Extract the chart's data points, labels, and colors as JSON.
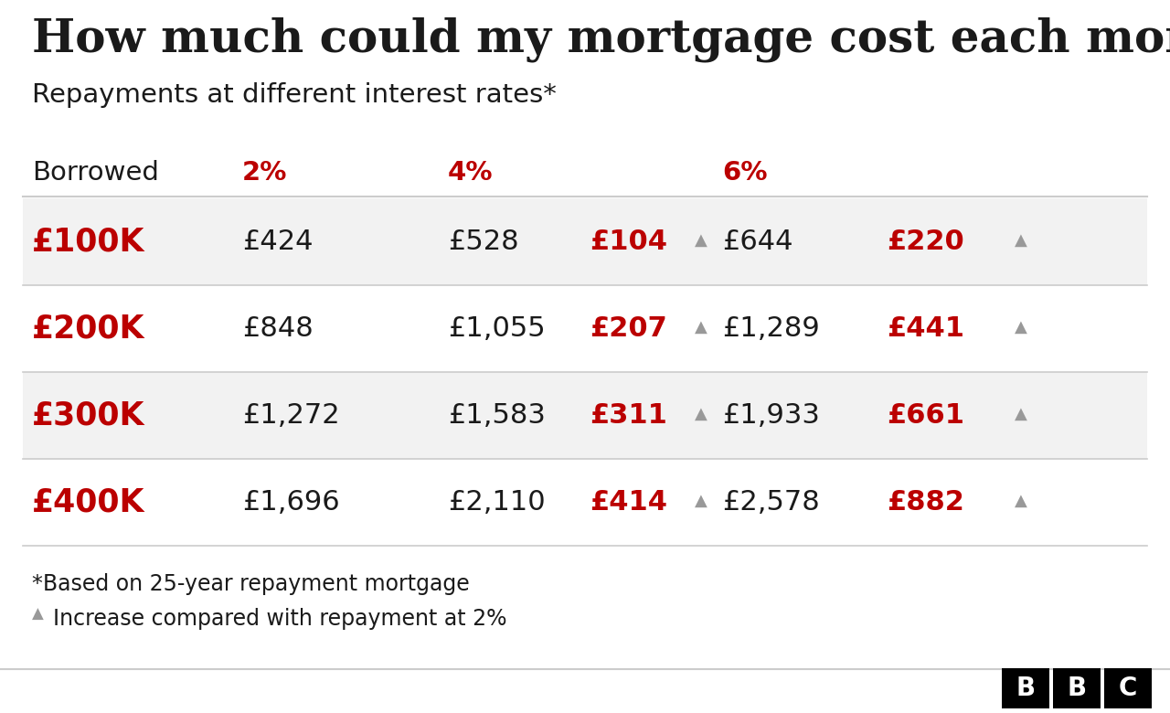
{
  "title": "How much could my mortgage cost each month?",
  "subtitle": "Repayments at different interest rates*",
  "bg_color": "#ffffff",
  "rows": [
    {
      "borrowed": "£100K",
      "val_2pct": "£424",
      "val_4pct": "£528",
      "diff_4pct": "£104",
      "val_6pct": "£644",
      "diff_6pct": "£220",
      "shaded": true
    },
    {
      "borrowed": "£200K",
      "val_2pct": "£848",
      "val_4pct": "£1,055",
      "diff_4pct": "£207",
      "val_6pct": "£1,289",
      "diff_6pct": "£441",
      "shaded": false
    },
    {
      "borrowed": "£300K",
      "val_2pct": "£1,272",
      "val_4pct": "£1,583",
      "diff_4pct": "£311",
      "val_6pct": "£1,933",
      "diff_6pct": "£661",
      "shaded": true
    },
    {
      "borrowed": "£400K",
      "val_2pct": "£1,696",
      "val_4pct": "£2,110",
      "diff_4pct": "£414",
      "val_6pct": "£2,578",
      "diff_6pct": "£882",
      "shaded": false
    }
  ],
  "footnote1": "*Based on 25-year repayment mortgage",
  "footnote2": "Increase compared with repayment at 2%",
  "red_color": "#bb0000",
  "dark_color": "#1a1a1a",
  "gray_color": "#999999",
  "shaded_color": "#f2f2f2",
  "line_color": "#cccccc",
  "bbc_bg": "#000000",
  "bbc_text": "#ffffff",
  "col_borrowed": 0.03,
  "col_2pct": 0.21,
  "col_4pct": 0.4,
  "col_diff4": 0.545,
  "col_6pct": 0.685,
  "col_diff6": 0.845,
  "title_fontsize": 36,
  "subtitle_fontsize": 21,
  "header_fontsize": 21,
  "body_fontsize": 22,
  "borrowed_fontsize": 25,
  "footnote_fontsize": 17
}
